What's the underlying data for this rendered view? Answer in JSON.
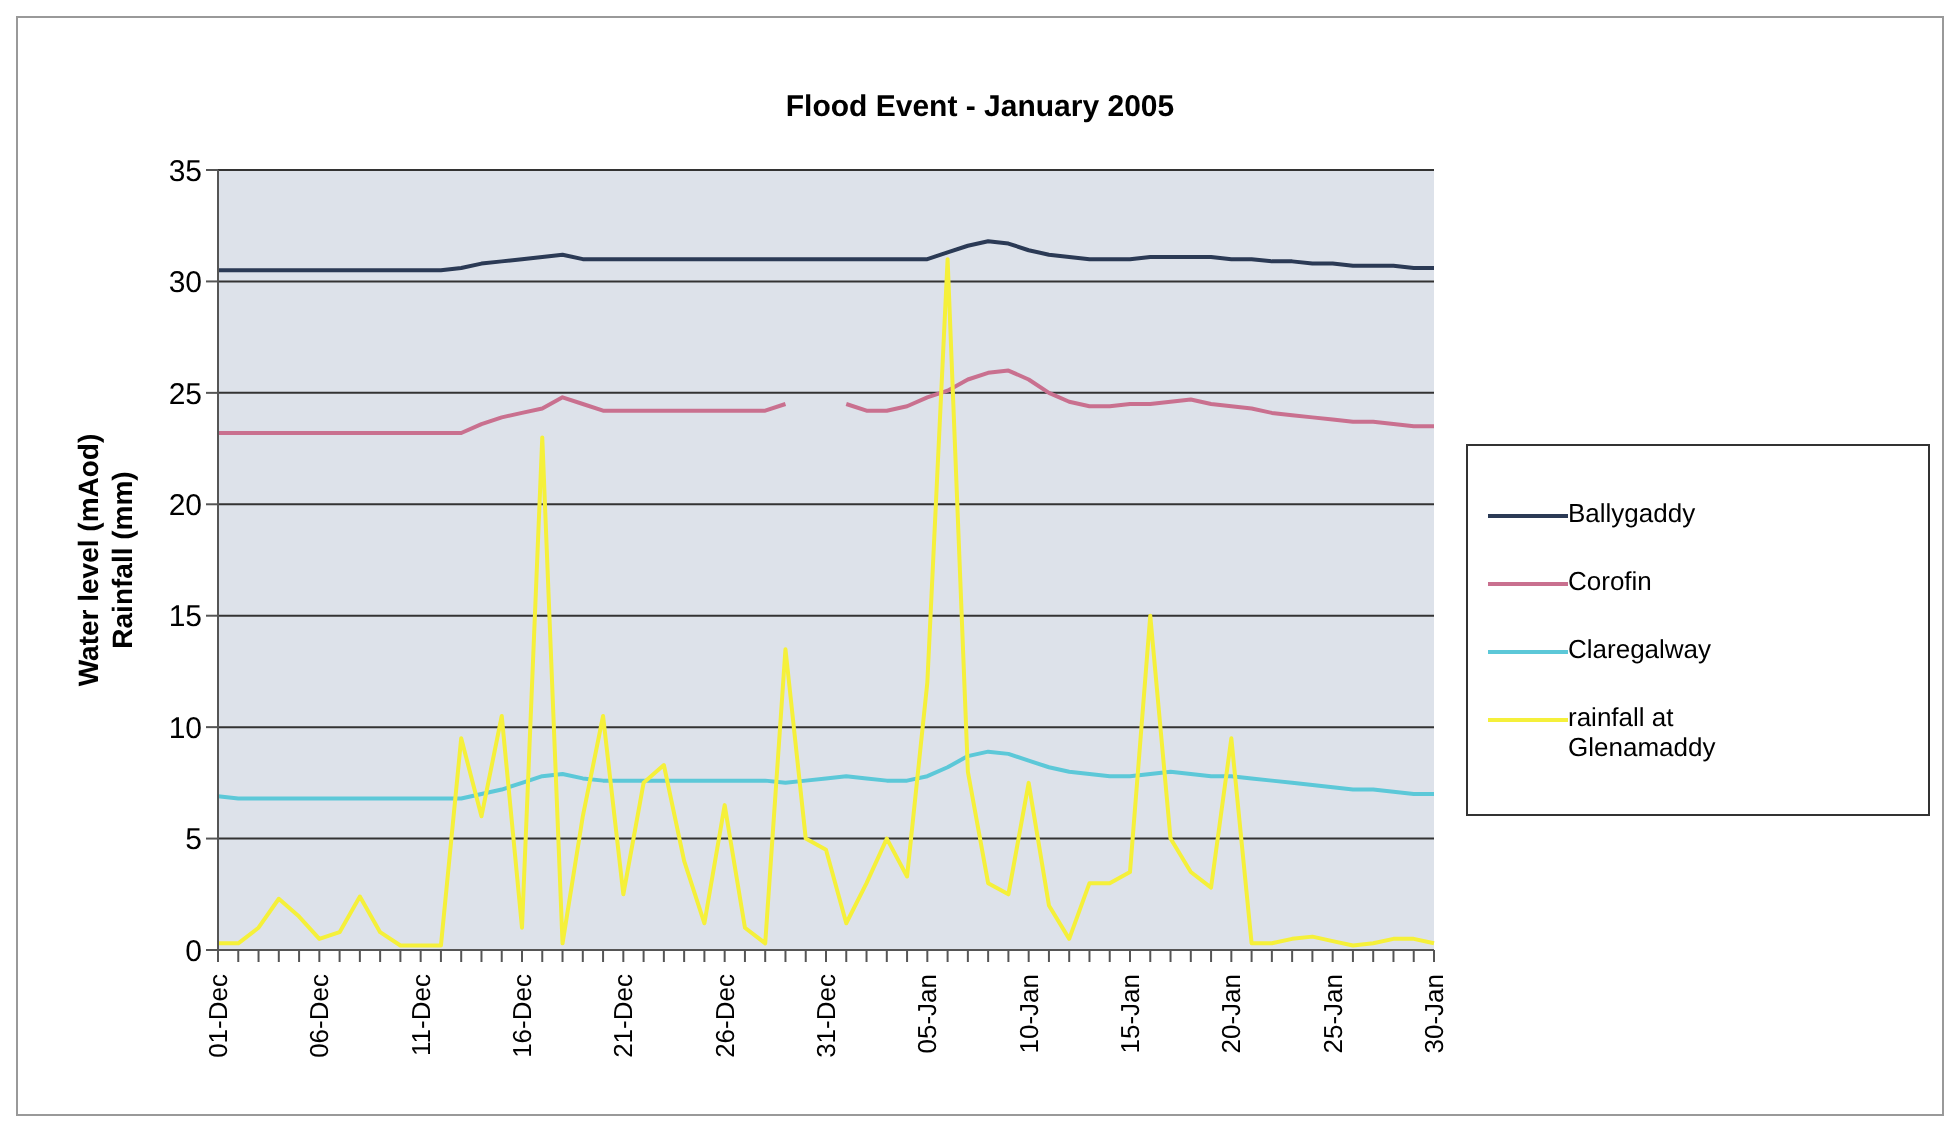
{
  "chart_data": {
    "type": "line",
    "title": "Flood Event - January 2005",
    "ylabel": "Water level (mAod)\nRainfall (mm)",
    "categories": [
      "01-Dec",
      null,
      null,
      null,
      null,
      "06-Dec",
      null,
      null,
      null,
      null,
      "11-Dec",
      null,
      null,
      null,
      null,
      "16-Dec",
      null,
      null,
      null,
      null,
      "21-Dec",
      null,
      null,
      null,
      null,
      "26-Dec",
      null,
      null,
      null,
      null,
      "31-Dec",
      null,
      null,
      null,
      null,
      "05-Jan",
      null,
      null,
      null,
      null,
      "10-Jan",
      null,
      null,
      null,
      null,
      "15-Jan",
      null,
      null,
      null,
      null,
      "20-Jan",
      null,
      null,
      null,
      null,
      "25-Jan",
      null,
      null,
      null,
      null,
      "30-Jan"
    ],
    "series": [
      {
        "name": "Ballygaddy",
        "color": "#2b3a55",
        "values": [
          30.5,
          30.5,
          30.5,
          30.5,
          30.5,
          30.5,
          30.5,
          30.5,
          30.5,
          30.5,
          30.5,
          30.5,
          30.6,
          30.8,
          30.9,
          31,
          31.1,
          31.2,
          31,
          31,
          31,
          31,
          31,
          31,
          31,
          31,
          31,
          31,
          31,
          31,
          31,
          31,
          31,
          31,
          31,
          31,
          31.3,
          31.6,
          31.8,
          31.7,
          31.4,
          31.2,
          31.1,
          31,
          31,
          31,
          31.1,
          31.1,
          31.1,
          31.1,
          31,
          31,
          30.9,
          30.9,
          30.8,
          30.8,
          30.7,
          30.7,
          30.7,
          30.6,
          30.6
        ]
      },
      {
        "name": "Corofin",
        "color": "#c9708f",
        "values": [
          23.2,
          23.2,
          23.2,
          23.2,
          23.2,
          23.2,
          23.2,
          23.2,
          23.2,
          23.2,
          23.2,
          23.2,
          23.2,
          23.6,
          23.9,
          24.1,
          24.3,
          24.8,
          24.5,
          24.2,
          24.2,
          24.2,
          24.2,
          24.2,
          24.2,
          24.2,
          24.2,
          24.2,
          24.5,
          null,
          null,
          24.5,
          24.2,
          24.2,
          24.4,
          24.8,
          25.1,
          25.6,
          25.9,
          26,
          25.6,
          25,
          24.6,
          24.4,
          24.4,
          24.5,
          24.5,
          24.6,
          24.7,
          24.5,
          24.4,
          24.3,
          24.1,
          24,
          23.9,
          23.8,
          23.7,
          23.7,
          23.6,
          23.5,
          23.5
        ]
      },
      {
        "name": "Claregalway",
        "color": "#5cc8d8",
        "values": [
          6.9,
          6.8,
          6.8,
          6.8,
          6.8,
          6.8,
          6.8,
          6.8,
          6.8,
          6.8,
          6.8,
          6.8,
          6.8,
          7,
          7.2,
          7.5,
          7.8,
          7.9,
          7.7,
          7.6,
          7.6,
          7.6,
          7.6,
          7.6,
          7.6,
          7.6,
          7.6,
          7.6,
          7.5,
          7.6,
          7.7,
          7.8,
          7.7,
          7.6,
          7.6,
          7.8,
          8.2,
          8.7,
          8.9,
          8.8,
          8.5,
          8.2,
          8,
          7.9,
          7.8,
          7.8,
          7.9,
          8,
          7.9,
          7.8,
          7.8,
          7.7,
          7.6,
          7.5,
          7.4,
          7.3,
          7.2,
          7.2,
          7.1,
          7,
          7
        ]
      },
      {
        "name": "rainfall at Glenamaddy",
        "color": "#f5f03a",
        "values": [
          0.3,
          0.3,
          1,
          2.3,
          1.5,
          0.5,
          0.8,
          2.4,
          0.8,
          0.2,
          0.2,
          0.2,
          9.5,
          6,
          10.5,
          1,
          23,
          0.3,
          6,
          10.5,
          2.5,
          7.5,
          8.3,
          4,
          1.2,
          6.5,
          1,
          0.3,
          13.5,
          5,
          4.5,
          1.2,
          3,
          5,
          3.3,
          12,
          31,
          8,
          3,
          2.5,
          7.5,
          2,
          0.5,
          3,
          3,
          3.5,
          15,
          5,
          3.5,
          2.8,
          9.5,
          0.3,
          0.3,
          0.5,
          0.6,
          0.4,
          0.2,
          0.3,
          0.5,
          0.5,
          0.3
        ]
      }
    ],
    "ylim": [
      0,
      35
    ],
    "yticks": [
      0,
      5,
      10,
      15,
      20,
      25,
      30,
      35
    ],
    "grid": "y",
    "legend": "right",
    "marker": "none",
    "line_style": "solid"
  }
}
